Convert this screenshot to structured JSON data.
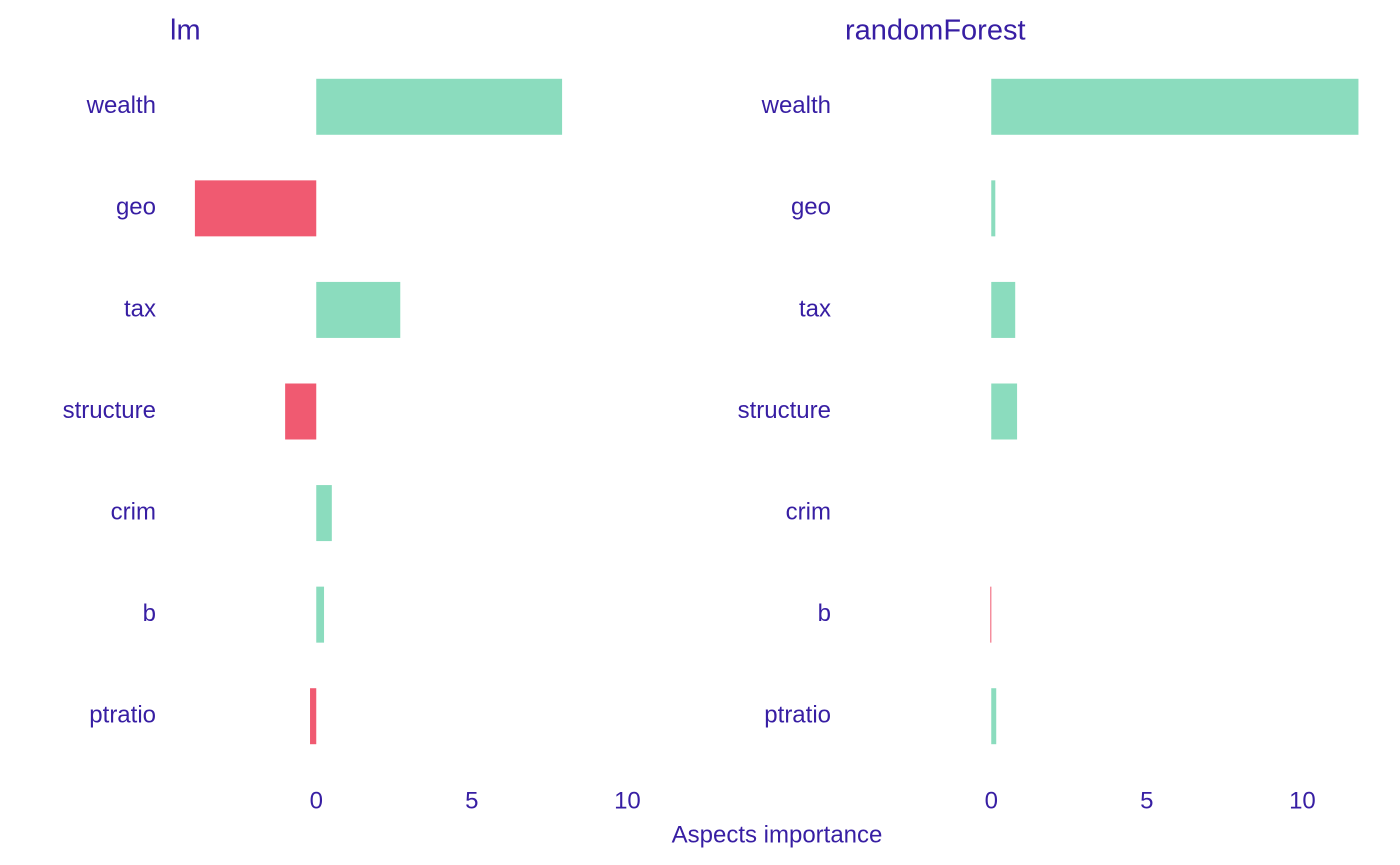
{
  "chart_data": {
    "type": "bar",
    "orientation": "horizontal",
    "xlabel": "Aspects importance",
    "categories": [
      "wealth",
      "geo",
      "tax",
      "structure",
      "crim",
      "b",
      "ptratio"
    ],
    "colors": {
      "positive": "#8bdcbe",
      "negative": "#f05a71"
    },
    "panels": [
      {
        "title": "lm",
        "values": [
          7.9,
          -3.9,
          2.7,
          -1.0,
          0.5,
          0.25,
          -0.2
        ],
        "xlim": [
          -4.7,
          11.85
        ],
        "xticks": [
          0,
          5,
          10
        ]
      },
      {
        "title": "randomForest",
        "values": [
          11.8,
          0.13,
          0.77,
          0.83,
          0,
          -0.03,
          0.16
        ],
        "xlim": [
          -4.7,
          11.85
        ],
        "xticks": [
          0,
          5,
          10
        ]
      }
    ]
  }
}
